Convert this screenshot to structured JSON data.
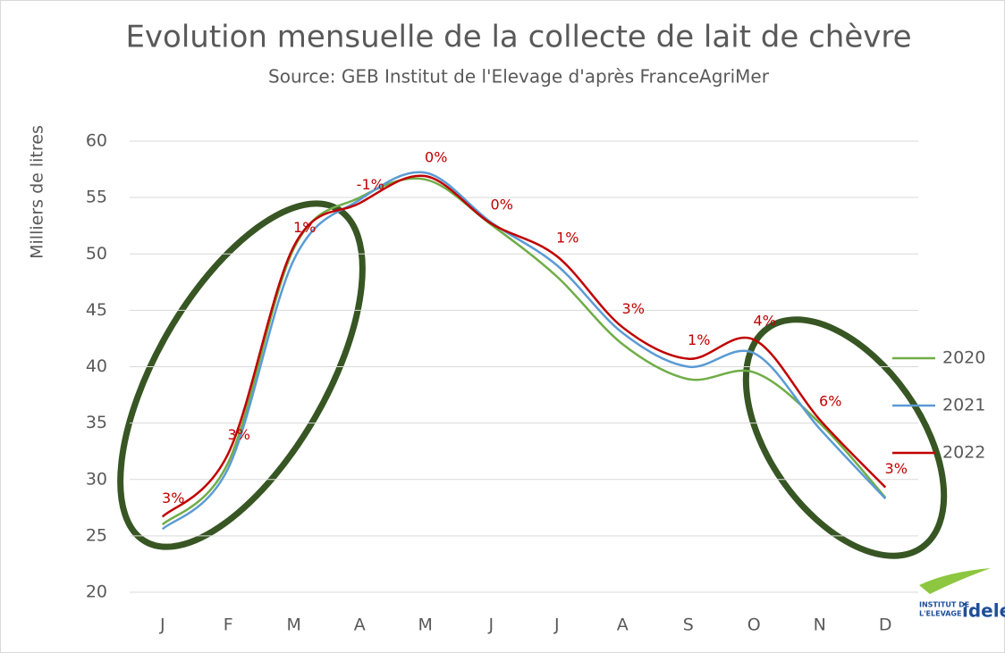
{
  "chart_data": {
    "type": "line",
    "title": "Evolution mensuelle de la collecte de lait de chèvre",
    "subtitle": "Source: GEB Institut de l'Elevage d'après FranceAgriMer",
    "y_label": "Milliers de litres",
    "categories": [
      "J",
      "F",
      "M",
      "A",
      "M",
      "J",
      "J",
      "A",
      "S",
      "O",
      "N",
      "D"
    ],
    "series": [
      {
        "name": "2020",
        "color": "#70ad47",
        "values": [
          26,
          31.5,
          50.5,
          55,
          56.6,
          52.6,
          48,
          42,
          38.9,
          39.5,
          35,
          28.4
        ]
      },
      {
        "name": "2021",
        "color": "#5b9bd5",
        "values": [
          25.6,
          31,
          49.5,
          54.8,
          57.2,
          52.8,
          49,
          43,
          40,
          41.2,
          34.5,
          28.3
        ]
      },
      {
        "name": "2022",
        "color": "#c00000",
        "values": [
          26.7,
          32.3,
          50.7,
          54.5,
          56.9,
          52.7,
          49.8,
          43.5,
          40.7,
          42.4,
          35.3,
          29.3
        ]
      }
    ],
    "annotations": [
      "3%",
      "3%",
      "1%",
      "-1%",
      "0%",
      "0%",
      "1%",
      "3%",
      "1%",
      "4%",
      "6%",
      "3%"
    ],
    "ylim": [
      20,
      60
    ],
    "yticks": [
      20,
      25,
      30,
      35,
      40,
      45,
      50,
      55,
      60
    ],
    "grid": true,
    "legend": "right"
  },
  "logo": [
    "INSTITUT DE",
    "L'ELEVAGE",
    "idele"
  ]
}
